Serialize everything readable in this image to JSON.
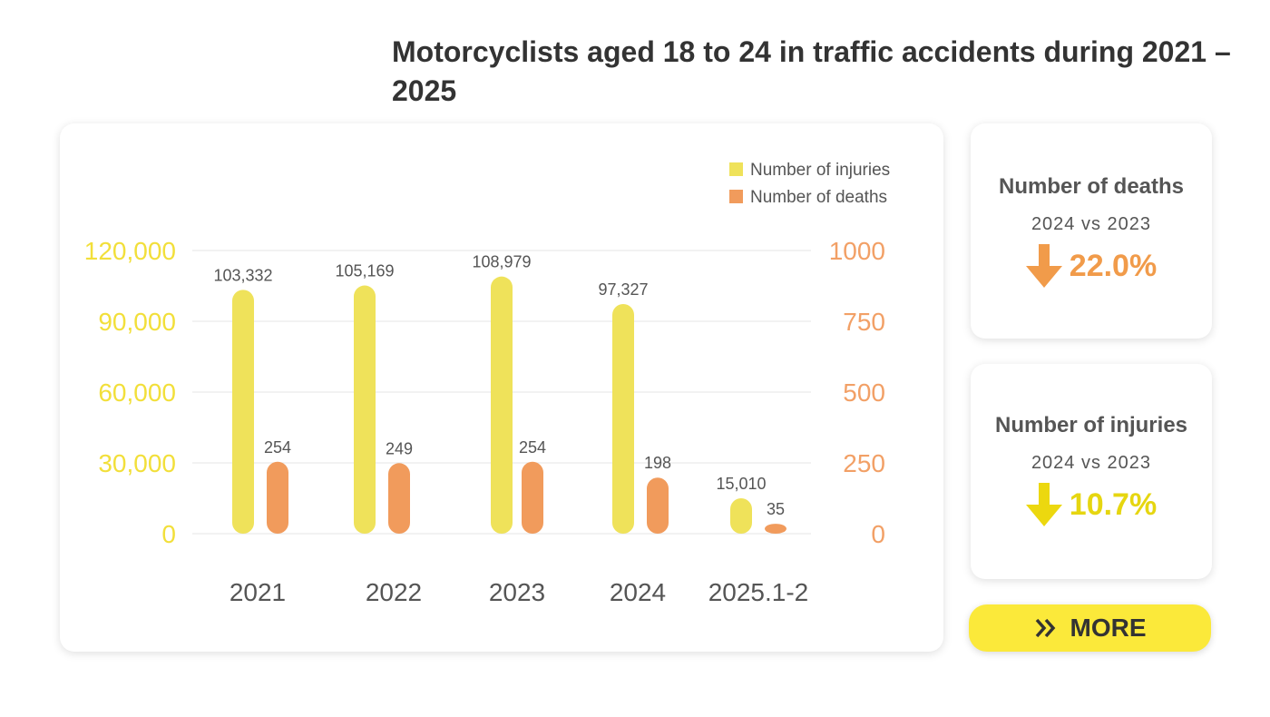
{
  "title": "Motorcyclists aged 18 to 24 in traffic accidents during 2021 – 2025",
  "colors": {
    "injuries": "#efe25a",
    "deaths": "#f19b5c",
    "left_axis": "#f2df3a",
    "right_axis": "#f2a066",
    "deaths_arrow": "#f19b4a",
    "injuries_arrow": "#ecd80f",
    "button": "#fbe93a"
  },
  "chart_data": {
    "type": "bar",
    "title": "Motorcyclists aged 18 to 24 in traffic accidents during 2021 – 2025",
    "categories": [
      "2021",
      "2022",
      "2023",
      "2024",
      "2025.1-2"
    ],
    "series": [
      {
        "name": "Number of injuries",
        "axis": "left",
        "values": [
          103332,
          105169,
          108979,
          97327,
          15010
        ],
        "labels": [
          "103,332",
          "105,169",
          "108,979",
          "97,327",
          "15,010"
        ]
      },
      {
        "name": "Number  of deaths",
        "axis": "right",
        "values": [
          254,
          249,
          254,
          198,
          35
        ],
        "labels": [
          "254",
          "249",
          "254",
          "198",
          "35"
        ]
      }
    ],
    "left_axis": {
      "ylim": [
        0,
        120000
      ],
      "ticks": [
        "0",
        "30,000",
        "60,000",
        "90,000",
        "120,000"
      ]
    },
    "right_axis": {
      "ylim": [
        0,
        1000
      ],
      "ticks": [
        "0",
        "250",
        "500",
        "750",
        "1000"
      ]
    },
    "legend": "top-right",
    "grid": true
  },
  "stats": {
    "deaths": {
      "title": "Number  of deaths",
      "comparison": "2024  vs  2023",
      "direction": "down",
      "value": "22.0%"
    },
    "injuries": {
      "title": "Number of injuries",
      "comparison": "2024  vs  2023",
      "direction": "down",
      "value": "10.7%"
    }
  },
  "more_button": {
    "label": "MORE",
    "icon": "double-chevron-right-icon"
  }
}
